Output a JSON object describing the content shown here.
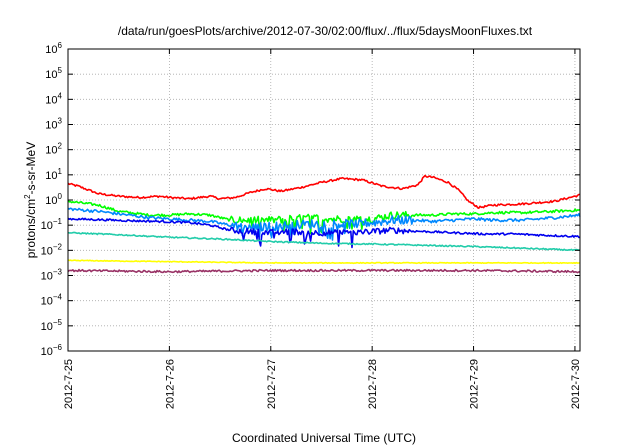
{
  "chart_data": {
    "type": "line",
    "title": "/data/run/goesPlots/archive/2012-07-30/02:00/flux/../flux/5daysMoonFluxes.txt",
    "xlabel": "Coordinated Universal Time (UTC)",
    "ylabel": "protons/cm²-s-sr-MeV",
    "ylabel_main": "protons/cm",
    "ylabel_sup": "2",
    "ylabel_rest": "-s-sr-MeV",
    "yscale": "log",
    "ylim_exponent": [
      -6,
      6
    ],
    "ytick_exponents": [
      6,
      5,
      4,
      3,
      2,
      1,
      0,
      -1,
      -2,
      -3,
      -4,
      -5,
      -6
    ],
    "ytick_base": "10",
    "xlim_days": [
      0,
      5.05
    ],
    "xticks": [
      {
        "label": "2012-7-25",
        "day": 0
      },
      {
        "label": "2012-7-26",
        "day": 1
      },
      {
        "label": "2012-7-27",
        "day": 2
      },
      {
        "label": "2012-7-28",
        "day": 3
      },
      {
        "label": "2012-7-29",
        "day": 4
      },
      {
        "label": "2012-7-30",
        "day": 5
      }
    ],
    "grid": true,
    "series": [
      {
        "color": "#ff0000",
        "noise": 0.04,
        "points": [
          [
            0,
            0.65
          ],
          [
            0.1,
            0.55
          ],
          [
            0.3,
            0.25
          ],
          [
            0.5,
            0.15
          ],
          [
            0.7,
            0.1
          ],
          [
            0.9,
            0.15
          ],
          [
            1.0,
            0.1
          ],
          [
            1.2,
            0.05
          ],
          [
            1.4,
            0.15
          ],
          [
            1.5,
            0.05
          ],
          [
            1.65,
            0.1
          ],
          [
            1.8,
            0.3
          ],
          [
            1.95,
            0.45
          ],
          [
            2.1,
            0.35
          ],
          [
            2.3,
            0.5
          ],
          [
            2.5,
            0.7
          ],
          [
            2.7,
            0.85
          ],
          [
            2.9,
            0.8
          ],
          [
            3.1,
            0.55
          ],
          [
            3.3,
            0.45
          ],
          [
            3.45,
            0.6
          ],
          [
            3.52,
            0.95
          ],
          [
            3.6,
            0.9
          ],
          [
            3.75,
            0.7
          ],
          [
            3.85,
            0.4
          ],
          [
            3.95,
            -0.05
          ],
          [
            4.05,
            -0.3
          ],
          [
            4.2,
            -0.2
          ],
          [
            4.5,
            -0.15
          ],
          [
            4.8,
            -0.05
          ],
          [
            5.05,
            0.2
          ]
        ]
      },
      {
        "color": "#00ff00",
        "noise": 0.05,
        "points": [
          [
            0,
            -0.05
          ],
          [
            0.3,
            -0.2
          ],
          [
            0.5,
            -0.45
          ],
          [
            0.8,
            -0.6
          ],
          [
            1.0,
            -0.6
          ],
          [
            1.2,
            -0.55
          ],
          [
            1.4,
            -0.6
          ],
          [
            1.6,
            -0.8
          ],
          [
            1.8,
            -0.8
          ],
          [
            2.0,
            -0.8
          ],
          [
            2.2,
            -0.75
          ],
          [
            2.4,
            -0.7
          ],
          [
            2.6,
            -0.75
          ],
          [
            2.8,
            -0.75
          ],
          [
            3.0,
            -0.75
          ],
          [
            3.2,
            -0.6
          ],
          [
            3.4,
            -0.6
          ],
          [
            3.6,
            -0.6
          ],
          [
            3.8,
            -0.55
          ],
          [
            4.0,
            -0.55
          ],
          [
            4.2,
            -0.5
          ],
          [
            4.5,
            -0.5
          ],
          [
            4.8,
            -0.45
          ],
          [
            5.05,
            -0.4
          ]
        ]
      },
      {
        "color": "#0088ff",
        "noise": 0.06,
        "points": [
          [
            0,
            -0.35
          ],
          [
            0.3,
            -0.45
          ],
          [
            0.6,
            -0.6
          ],
          [
            0.8,
            -0.7
          ],
          [
            1.0,
            -0.75
          ],
          [
            1.2,
            -0.8
          ],
          [
            1.4,
            -0.85
          ],
          [
            1.6,
            -1.0
          ],
          [
            1.8,
            -1.1
          ],
          [
            2.0,
            -1.05
          ],
          [
            2.2,
            -1.0
          ],
          [
            2.4,
            -0.95
          ],
          [
            2.6,
            -0.95
          ],
          [
            2.8,
            -0.95
          ],
          [
            3.0,
            -0.9
          ],
          [
            3.2,
            -0.8
          ],
          [
            3.4,
            -0.8
          ],
          [
            3.6,
            -0.85
          ],
          [
            3.8,
            -0.8
          ],
          [
            4.0,
            -0.75
          ],
          [
            4.2,
            -0.8
          ],
          [
            4.5,
            -0.8
          ],
          [
            4.8,
            -0.7
          ],
          [
            5.05,
            -0.6
          ]
        ]
      },
      {
        "color": "#0000ee",
        "noise": 0.04,
        "points": [
          [
            0,
            -0.75
          ],
          [
            0.3,
            -0.78
          ],
          [
            0.6,
            -0.82
          ],
          [
            0.9,
            -0.85
          ],
          [
            1.2,
            -0.9
          ],
          [
            1.4,
            -1.0
          ],
          [
            1.6,
            -1.2
          ],
          [
            1.8,
            -1.25
          ],
          [
            2.0,
            -1.3
          ],
          [
            2.2,
            -1.25
          ],
          [
            2.4,
            -1.3
          ],
          [
            2.6,
            -1.3
          ],
          [
            2.8,
            -1.3
          ],
          [
            3.0,
            -1.25
          ],
          [
            3.2,
            -1.2
          ],
          [
            3.5,
            -1.25
          ],
          [
            3.8,
            -1.3
          ],
          [
            4.1,
            -1.35
          ],
          [
            4.4,
            -1.35
          ],
          [
            4.7,
            -1.4
          ],
          [
            5.05,
            -1.45
          ]
        ]
      },
      {
        "color": "#22ccaa",
        "noise": 0.025,
        "points": [
          [
            0,
            -1.3
          ],
          [
            0.5,
            -1.38
          ],
          [
            1.0,
            -1.48
          ],
          [
            1.5,
            -1.55
          ],
          [
            2.0,
            -1.65
          ],
          [
            2.5,
            -1.72
          ],
          [
            3.0,
            -1.75
          ],
          [
            3.5,
            -1.8
          ],
          [
            4.0,
            -1.85
          ],
          [
            4.5,
            -1.92
          ],
          [
            5.05,
            -2.0
          ]
        ]
      },
      {
        "color": "#ffff00",
        "noise": 0.015,
        "points": [
          [
            0,
            -2.4
          ],
          [
            1.0,
            -2.45
          ],
          [
            2.0,
            -2.5
          ],
          [
            3.0,
            -2.5
          ],
          [
            4.0,
            -2.5
          ],
          [
            5.05,
            -2.5
          ]
        ]
      },
      {
        "color": "#993366",
        "noise": 0.04,
        "points": [
          [
            0,
            -2.8
          ],
          [
            1.0,
            -2.85
          ],
          [
            2.0,
            -2.8
          ],
          [
            3.0,
            -2.8
          ],
          [
            4.0,
            -2.8
          ],
          [
            5.05,
            -2.85
          ]
        ]
      }
    ]
  }
}
